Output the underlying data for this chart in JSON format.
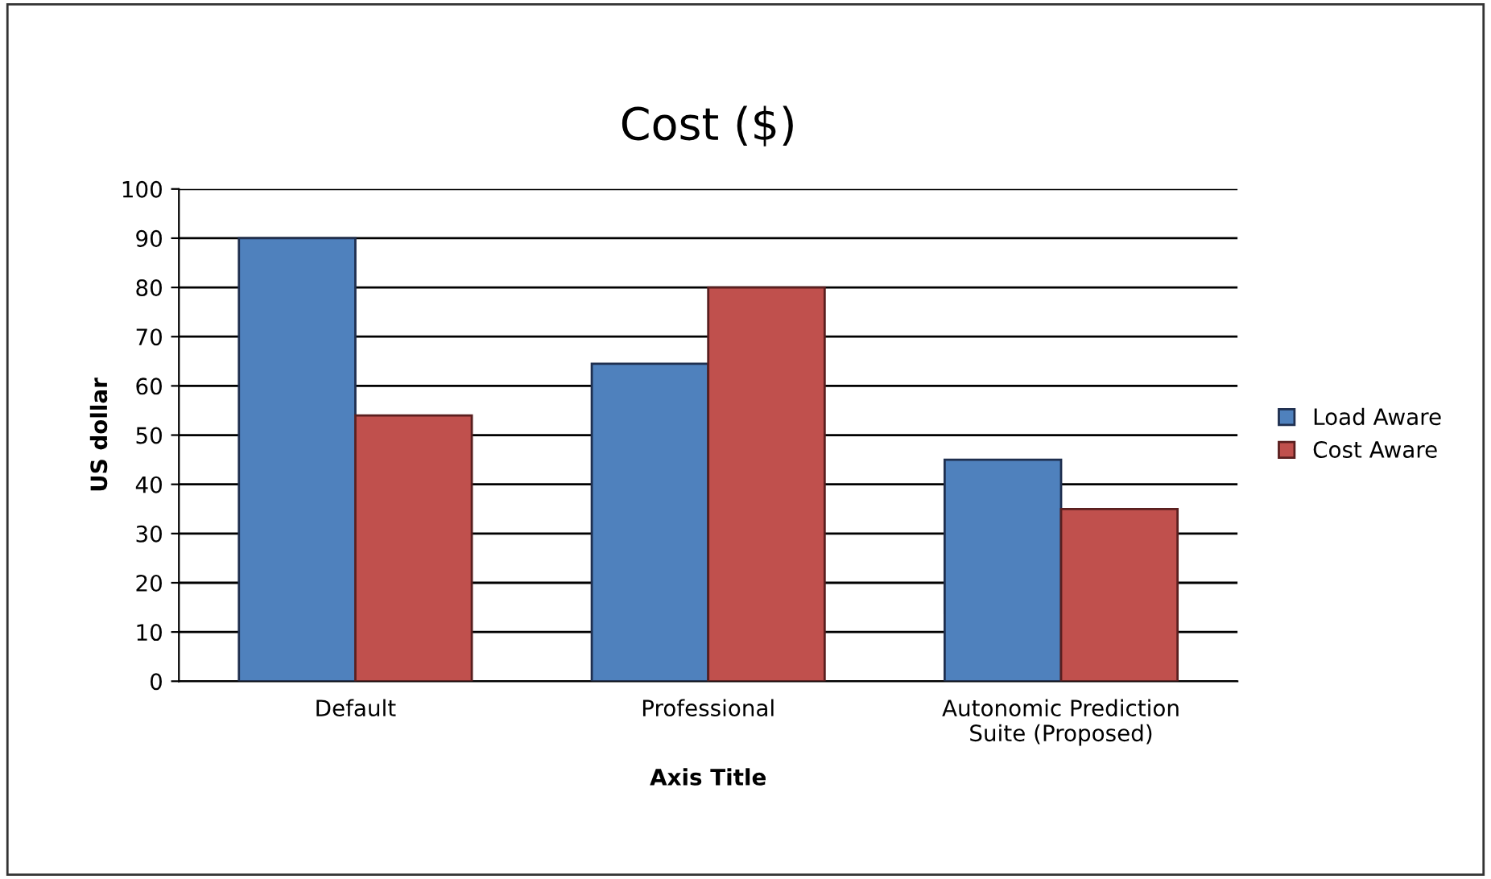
{
  "chart_data": {
    "type": "bar",
    "title": "Cost ($)",
    "xlabel": "Axis Title",
    "ylabel": "US dollar",
    "categories": [
      "Default",
      "Professional",
      "Autonomic Prediction\nSuite (Proposed)"
    ],
    "series": [
      {
        "name": "Load Aware",
        "color": "#4f81bd",
        "values": [
          90,
          64.5,
          45
        ]
      },
      {
        "name": "Cost Aware",
        "color": "#c0504d",
        "values": [
          54,
          80,
          35
        ]
      }
    ],
    "ylim": [
      0,
      100
    ],
    "yticks": [
      0,
      10,
      20,
      30,
      40,
      50,
      60,
      70,
      80,
      90,
      100
    ],
    "grid": "y",
    "legend": "right"
  }
}
